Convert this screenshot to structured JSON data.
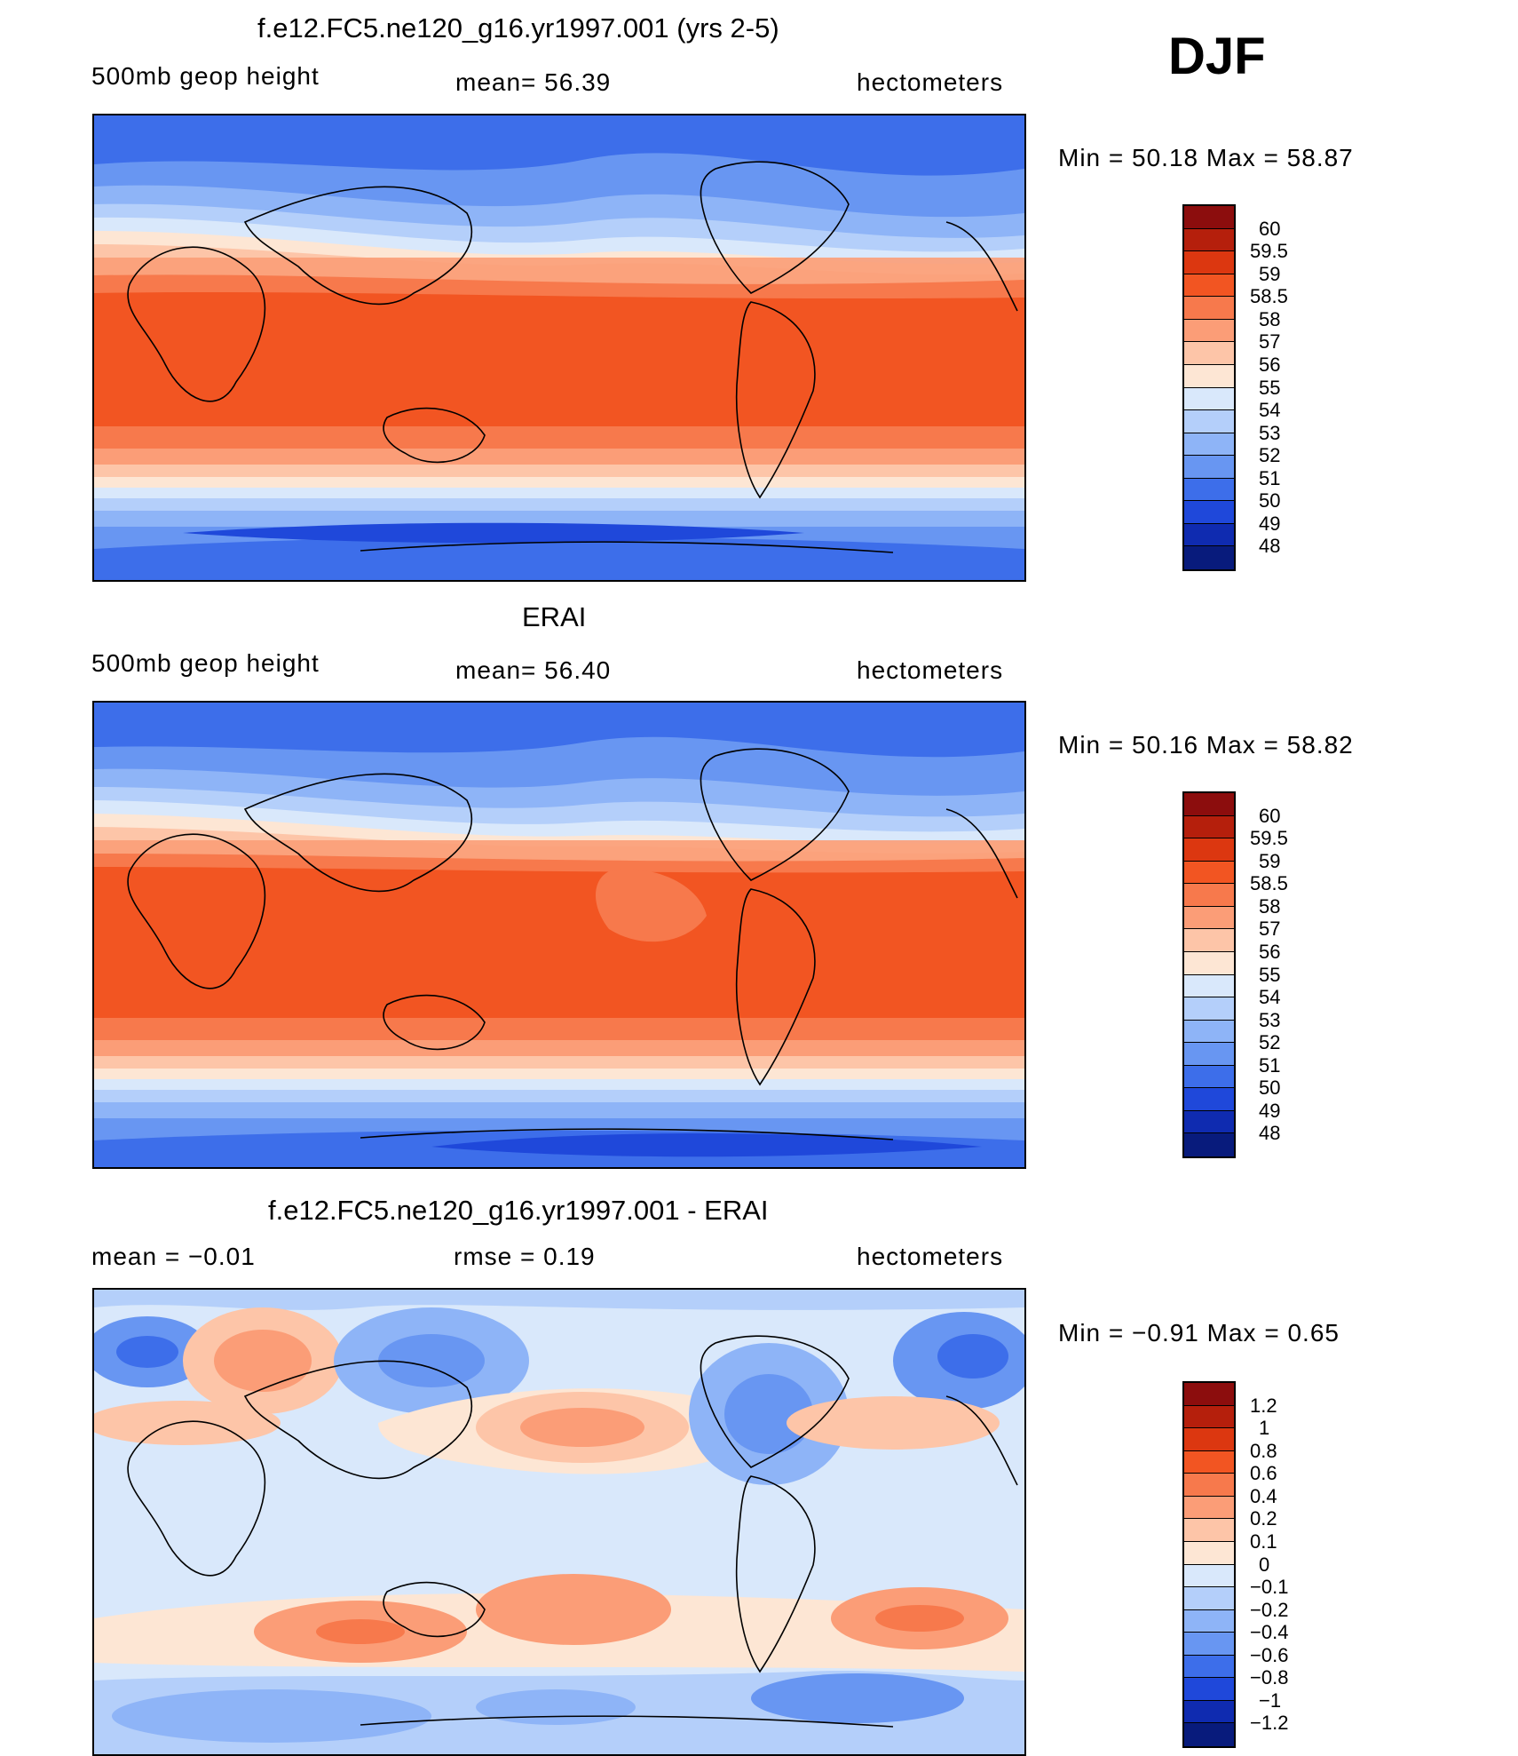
{
  "season": "DJF",
  "panels": [
    {
      "title": "f.e12.FC5.ne120_g16.yr1997.001 (yrs 2-5)",
      "left_label": "500mb  geop  height",
      "center_label": "mean=   56.39",
      "right_label": "hectometers",
      "min_max": "Min  =    50.18  Max  =    58.87",
      "colorbar": {
        "labels": [
          "60",
          "59.5",
          "59",
          "58.5",
          "58",
          "57",
          "56",
          "55",
          "54",
          "53",
          "52",
          "51",
          "50",
          "49",
          "48"
        ],
        "colors": [
          "#8c0d0d",
          "#b51f0c",
          "#dc3710",
          "#f25522",
          "#f7794c",
          "#fb9d77",
          "#fdc5a8",
          "#fde6d4",
          "#d9e8fb",
          "#b4cffa",
          "#8eb4f7",
          "#6896f2",
          "#3d6eea",
          "#1f48da",
          "#0f2bb0",
          "#081b7c"
        ]
      }
    },
    {
      "title": "ERAI",
      "left_label": "500mb  geop  height",
      "center_label": "mean=   56.40",
      "right_label": "hectometers",
      "min_max": "Min  =    50.16  Max  =    58.82",
      "colorbar": {
        "labels": [
          "60",
          "59.5",
          "59",
          "58.5",
          "58",
          "57",
          "56",
          "55",
          "54",
          "53",
          "52",
          "51",
          "50",
          "49",
          "48"
        ],
        "colors": [
          "#8c0d0d",
          "#b51f0c",
          "#dc3710",
          "#f25522",
          "#f7794c",
          "#fb9d77",
          "#fdc5a8",
          "#fde6d4",
          "#d9e8fb",
          "#b4cffa",
          "#8eb4f7",
          "#6896f2",
          "#3d6eea",
          "#1f48da",
          "#0f2bb0",
          "#081b7c"
        ]
      }
    },
    {
      "title": "f.e12.FC5.ne120_g16.yr1997.001 - ERAI",
      "left_label": "mean  =    −0.01",
      "center_label": "rmse  =     0.19",
      "right_label": "hectometers",
      "min_max": "Min  =    −0.91  Max  =     0.65",
      "colorbar": {
        "labels": [
          "1.2",
          "1",
          "0.8",
          "0.6",
          "0.4",
          "0.2",
          "0.1",
          "0",
          "−0.1",
          "−0.2",
          "−0.4",
          "−0.6",
          "−0.8",
          "−1",
          "−1.2"
        ],
        "colors": [
          "#8c0d0d",
          "#b51f0c",
          "#dc3710",
          "#f25522",
          "#f7794c",
          "#fb9d77",
          "#fdc5a8",
          "#fde6d4",
          "#d9e8fb",
          "#b4cffa",
          "#8eb4f7",
          "#6896f2",
          "#3d6eea",
          "#1f48da",
          "#0f2bb0",
          "#081b7c"
        ]
      }
    }
  ]
}
